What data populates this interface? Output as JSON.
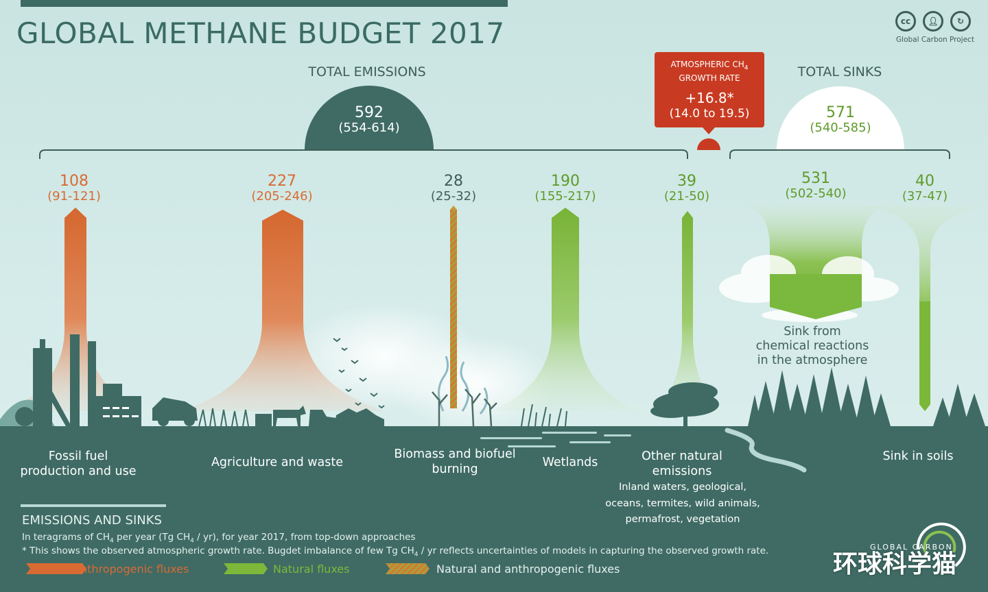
{
  "title": "GLOBAL METHANE BUDGET 2017",
  "license": {
    "icons": [
      "cc-icon",
      "person-icon",
      "share-alike-icon"
    ],
    "org": "Global Carbon Project"
  },
  "emissions_total": {
    "header": "TOTAL EMISSIONS",
    "value": "592",
    "range": "(554-614)"
  },
  "sinks_total": {
    "header": "TOTAL SINKS",
    "value": "571",
    "range": "(540-585)"
  },
  "growth": {
    "line1": "ATMOSPHERIC CH",
    "sub": "4",
    "line2": "GROWTH RATE",
    "value": "+16.8*",
    "range": "(14.0 to 19.5)"
  },
  "fluxes": [
    {
      "id": "fossil",
      "value": "108",
      "range": "(91-121)",
      "label1": "Fossil fuel",
      "label2": "production and use",
      "type": "anthropogenic"
    },
    {
      "id": "agri",
      "value": "227",
      "range": "(205-246)",
      "label1": "Agriculture and waste",
      "label2": "",
      "type": "anthropogenic"
    },
    {
      "id": "biomass",
      "value": "28",
      "range": "(25-32)",
      "label1": "Biomass and biofuel",
      "label2": "burning",
      "type": "mixed"
    },
    {
      "id": "wetlands",
      "value": "190",
      "range": "(155-217)",
      "label1": "Wetlands",
      "label2": "",
      "type": "natural"
    },
    {
      "id": "other",
      "value": "39",
      "range": "(21-50)",
      "label1": "Other natural",
      "label2": "emissions",
      "type": "natural",
      "detail": [
        "Inland waters, geological,",
        "oceans, termites, wild animals,",
        "permafrost, vegetation"
      ]
    },
    {
      "id": "chem",
      "value": "531",
      "range": "(502-540)",
      "label1": "Sink from",
      "label2": "chemical reactions",
      "label3": "in the atmosphere",
      "type": "sink"
    },
    {
      "id": "soils",
      "value": "40",
      "range": "(37-47)",
      "label1": "Sink in soils",
      "label2": "",
      "type": "sink"
    }
  ],
  "legend": {
    "heading": "EMISSIONS AND SINKS",
    "units_pre": "In teragrams of CH",
    "units_sub1": "4",
    "units_mid": " per year (Tg CH",
    "units_sub2": "4",
    "units_post": " / yr),  for year 2017, from top-down approaches",
    "note_pre": "* This shows the observed atmospheric growth rate. Bugdet imbalance of few Tg  CH",
    "note_sub": "4",
    "note_post": " / yr reflects uncertainties of models in capturing the observed growth rate.",
    "items": [
      {
        "label": "Anthropogenic fluxes",
        "color": "#d96a33"
      },
      {
        "label": "Natural fluxes",
        "color": "#7db83a"
      },
      {
        "label": "Natural and anthropogenic fluxes",
        "color": "#c79a3a"
      }
    ]
  },
  "watermark": {
    "logo_text": "GLOBAL CARBON",
    "text": "环球科学猫"
  },
  "colors": {
    "anthropogenic": "#d96a33",
    "natural": "#7db83a",
    "ground": "#3f6b64",
    "growth": "#c83b22"
  }
}
